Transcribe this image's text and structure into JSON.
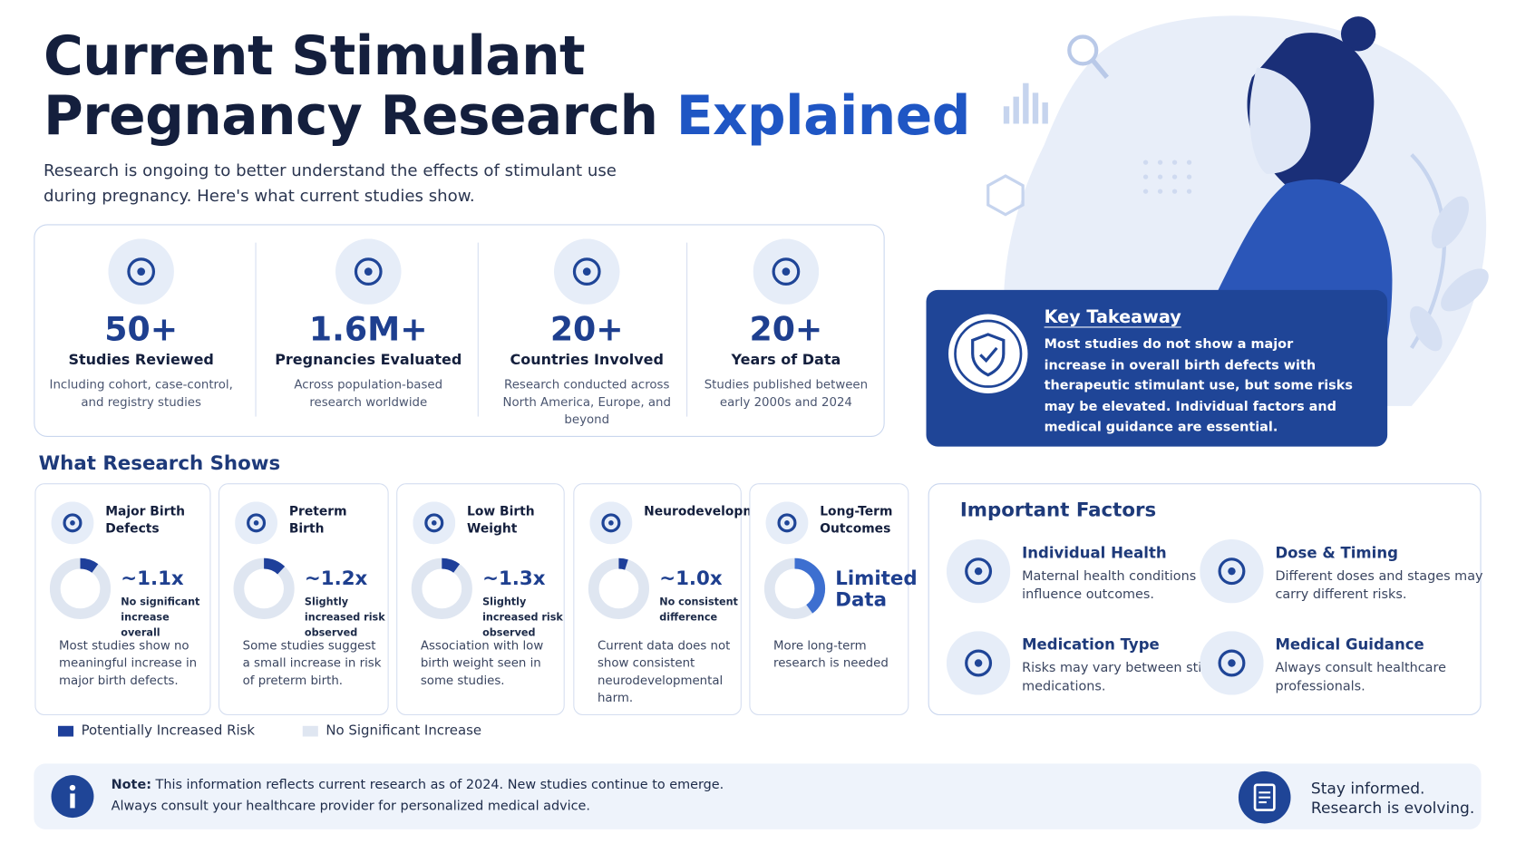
{
  "header": {
    "title_line1": "Current Stimulant",
    "title_line2": "Pregnancy Research",
    "title_highlight": "Explained",
    "intro": "Research is ongoing to better understand the effects of stimulant use during pregnancy. Here's what current studies show."
  },
  "stats": [
    {
      "value": "50+",
      "label": "Studies Reviewed",
      "note": "Including cohort, case-control, and registry studies"
    },
    {
      "value": "1.6M+",
      "label": "Pregnancies Evaluated",
      "note": "Across population-based research worldwide"
    },
    {
      "value": "20+",
      "label": "Countries Involved",
      "note": "Research conducted across North America, Europe, and beyond"
    },
    {
      "value": "20+",
      "label": "Years of Data",
      "note": "Studies published between early 2000s and 2024"
    }
  ],
  "takeaway": {
    "title": "Key Takeaway",
    "text": "Most studies do not show a major increase in overall birth defects with therapeutic stimulant use, but some risks may be elevated. Individual factors and medical guidance are essential."
  },
  "findings": {
    "title": "What Research Shows",
    "cards": [
      {
        "name": "Major Birth Defects",
        "ratio": "~1.1x",
        "detail": "No significant increase overall",
        "text": "Most studies show no meaningful increase in major birth defects.",
        "ring": 10
      },
      {
        "name": "Preterm Birth",
        "ratio": "~1.2x",
        "detail": "Slightly increased risk observed",
        "text": "Some studies suggest a small increase in risk of preterm birth.",
        "ring": 12
      },
      {
        "name": "Low Birth Weight",
        "ratio": "~1.3x",
        "detail": "Slightly increased risk observed",
        "text": "Association with low birth weight seen in some studies.",
        "ring": 10
      },
      {
        "name": "Neurodevelopment",
        "ratio": "~1.0x",
        "detail": "No consistent difference",
        "text": "Current data does not show consistent neurodevelopmental harm.",
        "ring": 5
      },
      {
        "name": "Long-Term Outcomes",
        "ratio": "Limited Data",
        "text": "More long-term research is needed",
        "ring": 40
      }
    ]
  },
  "legend": [
    "Potentially Increased Risk",
    "No Significant Increase"
  ],
  "factors": {
    "title": "Important Factors",
    "items": [
      {
        "name": "Individual Health",
        "text": "Maternal health conditions can influence outcomes."
      },
      {
        "name": "Dose & Timing",
        "text": "Different doses and stages may carry different risks."
      },
      {
        "name": "Medication Type",
        "text": "Risks may vary between stimulant medications."
      },
      {
        "name": "Medical Guidance",
        "text": "Always consult healthcare professionals."
      }
    ]
  },
  "note": {
    "label": "Note:",
    "line1": "This information reflects current research as of 2024. New studies continue to emerge.",
    "line2": "Always consult your healthcare provider for personalized medical advice."
  },
  "footer": [
    "Stay informed.",
    "Research is evolving."
  ]
}
